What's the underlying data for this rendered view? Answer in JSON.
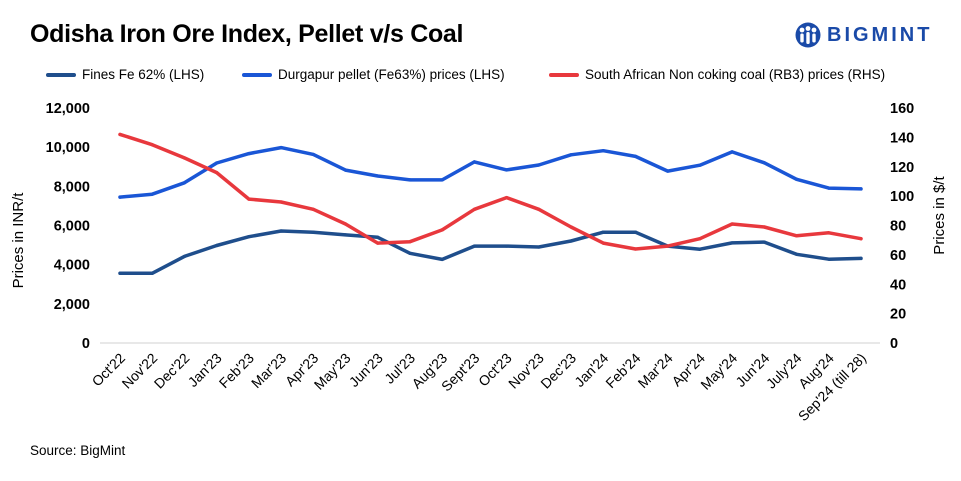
{
  "chart_data": {
    "type": "line",
    "title": "Odisha Iron Ore Index, Pellet v/s Coal",
    "ylabel_left": "Prices in INR/t",
    "ylabel_right": "Prices in $/t",
    "ylim_left": [
      0,
      12000
    ],
    "ylim_right": [
      0,
      160
    ],
    "yticks_left": [
      "0",
      "2,000",
      "4,000",
      "6,000",
      "8,000",
      "10,000",
      "12,000"
    ],
    "yticks_right": [
      "0",
      "20",
      "40",
      "60",
      "80",
      "100",
      "120",
      "140",
      "160"
    ],
    "categories": [
      "Oct'22",
      "Nov'22",
      "Dec'22",
      "Jan'23",
      "Feb'23",
      "Mar'23",
      "Apr'23",
      "May'23",
      "Jun'23",
      "Jul'23",
      "Aug'23",
      "Sept'23",
      "Oct'23",
      "Nov'23",
      "Dec'23",
      "Jan'24",
      "Feb'24",
      "Mar'24",
      "Apr'24",
      "May'24",
      "Jun'24",
      "July'24",
      "Aug'24",
      "Sep'24 (till 28)"
    ],
    "series": [
      {
        "name": "Fines Fe 62% (LHS)",
        "axis": "left",
        "color": "#1f4e8c",
        "values": [
          3560,
          3560,
          4420,
          4980,
          5430,
          5720,
          5660,
          5520,
          5400,
          4580,
          4270,
          4950,
          4950,
          4900,
          5210,
          5660,
          5660,
          4950,
          4790,
          5110,
          5150,
          4530,
          4280,
          4320
        ]
      },
      {
        "name": "Durgapur pellet (Fe63%) prices (LHS)",
        "axis": "left",
        "color": "#1a56d6",
        "values": [
          7450,
          7600,
          8180,
          9190,
          9670,
          9980,
          9630,
          8830,
          8530,
          8330,
          8330,
          9250,
          8840,
          9090,
          9610,
          9820,
          9530,
          8780,
          9080,
          9760,
          9200,
          8360,
          7910,
          7870
        ]
      },
      {
        "name": "South African Non coking coal (RB3) prices (RHS)",
        "axis": "right",
        "color": "#e8383d",
        "values": [
          142,
          135,
          126,
          116,
          98,
          96,
          91,
          81,
          68,
          69,
          77,
          91,
          99,
          91,
          79,
          68,
          64,
          66,
          71,
          81,
          79,
          73,
          75,
          71
        ]
      }
    ]
  },
  "logo": {
    "text": "BIGMINT"
  },
  "source": "Source: BigMint"
}
